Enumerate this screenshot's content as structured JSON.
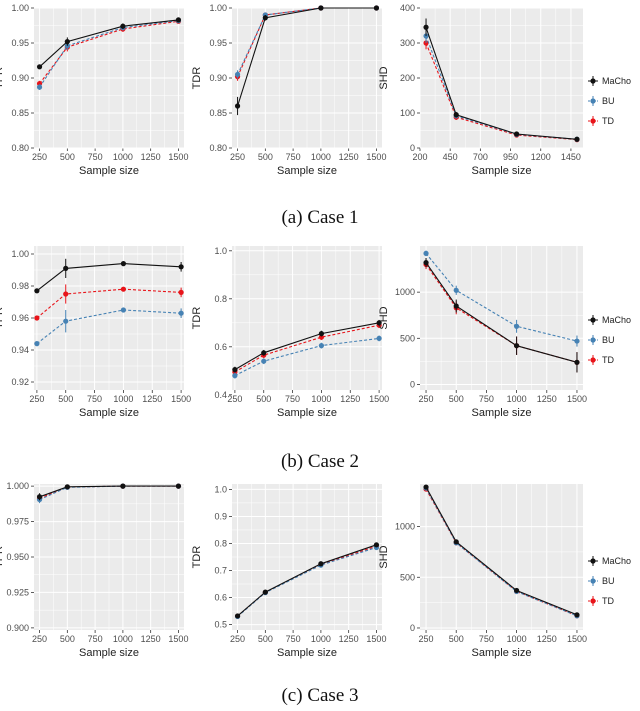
{
  "colors": {
    "MaCho": "#111111",
    "BU": "#4682b4",
    "TD": "#e8141a",
    "panel": "#ebebeb",
    "grid": "#ffffff"
  },
  "legend": [
    "MaCho",
    "BU",
    "TD"
  ],
  "captions": [
    "(a) Case 1",
    "(b) Case 2",
    "(c) Case 3"
  ],
  "chart_data": [
    {
      "type": "line",
      "case": "Case 1",
      "title": "",
      "xlabel": "Sample size",
      "ylabel": "TPR",
      "xlim": [
        200,
        1550
      ],
      "ylim": [
        0.8,
        1.0
      ],
      "xticks": [
        250,
        500,
        750,
        1000,
        1250,
        1500
      ],
      "yticks": [
        0.8,
        0.85,
        0.9,
        0.95,
        1.0
      ],
      "xtick_labels": [
        "250",
        "500",
        "750",
        "1000",
        "1250",
        "1500"
      ],
      "ytick_labels": [
        "0.80",
        "0.85",
        "0.90",
        "0.95",
        "1.00"
      ],
      "x": [
        250,
        500,
        1000,
        1500
      ],
      "series": [
        {
          "name": "MaCho",
          "values": [
            0.916,
            0.952,
            0.974,
            0.983
          ],
          "err": [
            0.003,
            0.006,
            0.004,
            0.003
          ]
        },
        {
          "name": "BU",
          "values": [
            0.887,
            0.946,
            0.972,
            0.982
          ],
          "err": [
            0.004,
            0.006,
            0.004,
            0.003
          ]
        },
        {
          "name": "TD",
          "values": [
            0.892,
            0.944,
            0.97,
            0.981
          ],
          "err": [
            0.004,
            0.006,
            0.004,
            0.003
          ]
        }
      ]
    },
    {
      "type": "line",
      "case": "Case 1",
      "title": "",
      "xlabel": "Sample size",
      "ylabel": "TDR",
      "xlim": [
        200,
        1550
      ],
      "ylim": [
        0.8,
        1.0
      ],
      "xticks": [
        250,
        500,
        750,
        1000,
        1250,
        1500
      ],
      "yticks": [
        0.8,
        0.85,
        0.9,
        0.95,
        1.0
      ],
      "xtick_labels": [
        "250",
        "500",
        "750",
        "1000",
        "1250",
        "1500"
      ],
      "ytick_labels": [
        "0.80",
        "0.85",
        "0.90",
        "0.95",
        "1.00"
      ],
      "x": [
        250,
        500,
        1000,
        1500
      ],
      "series": [
        {
          "name": "MaCho",
          "values": [
            0.86,
            0.986,
            1.0,
            1.0
          ],
          "err": [
            0.013,
            0.004,
            0.0,
            0.0
          ]
        },
        {
          "name": "BU",
          "values": [
            0.905,
            0.99,
            1.0,
            1.0
          ],
          "err": [
            0.006,
            0.003,
            0.0,
            0.0
          ]
        },
        {
          "name": "TD",
          "values": [
            0.902,
            0.99,
            1.0,
            1.0
          ],
          "err": [
            0.006,
            0.003,
            0.0,
            0.0
          ]
        }
      ]
    },
    {
      "type": "line",
      "case": "Case 1",
      "title": "",
      "xlabel": "Sample size",
      "ylabel": "SHD",
      "xlim": [
        200,
        1550
      ],
      "ylim": [
        0,
        400
      ],
      "xticks": [
        200,
        450,
        700,
        950,
        1200,
        1450
      ],
      "yticks": [
        0,
        100,
        200,
        300,
        400
      ],
      "xtick_labels": [
        "200",
        "450",
        "700",
        "950",
        "1200",
        "1450"
      ],
      "ytick_labels": [
        "0",
        "100",
        "200",
        "300",
        "400"
      ],
      "x": [
        250,
        500,
        1000,
        1500
      ],
      "series": [
        {
          "name": "MaCho",
          "values": [
            345,
            95,
            40,
            25
          ],
          "err": [
            25,
            8,
            4,
            3
          ]
        },
        {
          "name": "BU",
          "values": [
            320,
            92,
            39,
            25
          ],
          "err": [
            20,
            8,
            4,
            3
          ]
        },
        {
          "name": "TD",
          "values": [
            300,
            88,
            37,
            24
          ],
          "err": [
            18,
            8,
            4,
            3
          ]
        }
      ]
    },
    {
      "type": "line",
      "case": "Case 2",
      "title": "",
      "xlabel": "Sample size",
      "ylabel": "TPR",
      "xlim": [
        225,
        1525
      ],
      "ylim": [
        0.915,
        1.005
      ],
      "xticks": [
        250,
        500,
        750,
        1000,
        1250,
        1500
      ],
      "yticks": [
        0.92,
        0.94,
        0.96,
        0.98,
        1.0
      ],
      "xtick_labels": [
        "250",
        "500",
        "750",
        "1000",
        "1250",
        "1500"
      ],
      "ytick_labels": [
        "0.92",
        "0.94",
        "0.96",
        "0.98",
        "1.00"
      ],
      "x": [
        250,
        500,
        1000,
        1500
      ],
      "series": [
        {
          "name": "MaCho",
          "values": [
            0.977,
            0.991,
            0.994,
            0.992
          ],
          "err": [
            0.001,
            0.006,
            0.001,
            0.003
          ]
        },
        {
          "name": "BU",
          "values": [
            0.944,
            0.958,
            0.965,
            0.963
          ],
          "err": [
            0.001,
            0.007,
            0.001,
            0.003
          ]
        },
        {
          "name": "TD",
          "values": [
            0.96,
            0.975,
            0.978,
            0.976
          ],
          "err": [
            0.001,
            0.006,
            0.001,
            0.003
          ]
        }
      ]
    },
    {
      "type": "line",
      "case": "Case 2",
      "title": "",
      "xlabel": "Sample size",
      "ylabel": "TDR",
      "xlim": [
        225,
        1525
      ],
      "ylim": [
        0.42,
        1.02
      ],
      "xticks": [
        250,
        500,
        750,
        1000,
        1250,
        1500
      ],
      "yticks": [
        0.4,
        0.6,
        0.8,
        1.0
      ],
      "xtick_labels": [
        "250",
        "500",
        "750",
        "1000",
        "1250",
        "1500"
      ],
      "ytick_labels": [
        "0.4",
        "0.6",
        "0.8",
        "1.0"
      ],
      "x": [
        250,
        500,
        1000,
        1500
      ],
      "series": [
        {
          "name": "MaCho",
          "values": [
            0.505,
            0.575,
            0.655,
            0.7
          ],
          "err": [
            0.012,
            0.012,
            0.012,
            0.012
          ]
        },
        {
          "name": "BU",
          "values": [
            0.48,
            0.54,
            0.605,
            0.635
          ],
          "err": [
            0.012,
            0.012,
            0.012,
            0.012
          ]
        },
        {
          "name": "TD",
          "values": [
            0.495,
            0.565,
            0.64,
            0.69
          ],
          "err": [
            0.012,
            0.012,
            0.012,
            0.012
          ]
        }
      ]
    },
    {
      "type": "line",
      "case": "Case 2",
      "title": "",
      "xlabel": "Sample size",
      "ylabel": "SHD",
      "xlim": [
        200,
        1550
      ],
      "ylim": [
        -60,
        1500
      ],
      "xticks": [
        250,
        500,
        750,
        1000,
        1250,
        1500
      ],
      "yticks": [
        0,
        500,
        1000
      ],
      "xtick_labels": [
        "250",
        "500",
        "750",
        "1000",
        "1250",
        "1500"
      ],
      "ytick_labels": [
        "0",
        "500",
        "1000"
      ],
      "x": [
        250,
        500,
        1000,
        1500
      ],
      "series": [
        {
          "name": "MaCho",
          "values": [
            1320,
            850,
            420,
            240
          ],
          "err": [
            50,
            70,
            100,
            110
          ]
        },
        {
          "name": "BU",
          "values": [
            1420,
            1020,
            630,
            470
          ],
          "err": [
            30,
            50,
            70,
            60
          ]
        },
        {
          "name": "TD",
          "values": [
            1300,
            830,
            420,
            240
          ],
          "err": [
            50,
            70,
            100,
            110
          ]
        }
      ]
    },
    {
      "type": "line",
      "case": "Case 3",
      "title": "",
      "xlabel": "Sample size",
      "ylabel": "TPR",
      "xlim": [
        200,
        1550
      ],
      "ylim": [
        0.8985,
        1.0015
      ],
      "xticks": [
        250,
        500,
        750,
        1000,
        1250,
        1500
      ],
      "yticks": [
        0.9,
        0.925,
        0.95,
        0.975,
        1.0
      ],
      "xtick_labels": [
        "250",
        "500",
        "750",
        "1000",
        "1250",
        "1500"
      ],
      "ytick_labels": [
        "0.900",
        "0.925",
        "0.950",
        "0.975",
        "1.000"
      ],
      "x": [
        250,
        500,
        1000,
        1500
      ],
      "series": [
        {
          "name": "MaCho",
          "values": [
            0.9925,
            0.9995,
            1.0,
            1.0
          ],
          "err": [
            0.0025,
            0.0006,
            0.0,
            0.0
          ]
        },
        {
          "name": "BU",
          "values": [
            0.9905,
            0.9992,
            1.0,
            1.0
          ],
          "err": [
            0.0025,
            0.0006,
            0.0,
            0.0
          ]
        },
        {
          "name": "TD",
          "values": [
            0.9915,
            0.9993,
            1.0,
            1.0
          ],
          "err": [
            0.0025,
            0.0006,
            0.0,
            0.0
          ]
        }
      ]
    },
    {
      "type": "line",
      "case": "Case 3",
      "title": "",
      "xlabel": "Sample size",
      "ylabel": "TDR",
      "xlim": [
        200,
        1550
      ],
      "ylim": [
        0.48,
        1.02
      ],
      "xticks": [
        250,
        500,
        750,
        1000,
        1250,
        1500
      ],
      "yticks": [
        0.5,
        0.6,
        0.7,
        0.8,
        0.9,
        1.0
      ],
      "xtick_labels": [
        "250",
        "500",
        "750",
        "1000",
        "1250",
        "1500"
      ],
      "ytick_labels": [
        "0.5",
        "0.6",
        "0.7",
        "0.8",
        "0.9",
        "1.0"
      ],
      "x": [
        250,
        500,
        1000,
        1500
      ],
      "series": [
        {
          "name": "MaCho",
          "values": [
            0.532,
            0.62,
            0.725,
            0.795
          ],
          "err": [
            0.004,
            0.004,
            0.005,
            0.005
          ]
        },
        {
          "name": "BU",
          "values": [
            0.53,
            0.618,
            0.72,
            0.785
          ],
          "err": [
            0.004,
            0.004,
            0.005,
            0.005
          ]
        },
        {
          "name": "TD",
          "values": [
            0.531,
            0.619,
            0.722,
            0.79
          ],
          "err": [
            0.004,
            0.004,
            0.005,
            0.005
          ]
        }
      ]
    },
    {
      "type": "line",
      "case": "Case 3",
      "title": "",
      "xlabel": "Sample size",
      "ylabel": "SHD",
      "xlim": [
        200,
        1550
      ],
      "ylim": [
        -20,
        1420
      ],
      "xticks": [
        250,
        500,
        750,
        1000,
        1250,
        1500
      ],
      "yticks": [
        0,
        500,
        1000
      ],
      "xtick_labels": [
        "250",
        "500",
        "750",
        "1000",
        "1250",
        "1500"
      ],
      "ytick_labels": [
        "0",
        "500",
        "1000"
      ],
      "x": [
        250,
        500,
        1000,
        1500
      ],
      "series": [
        {
          "name": "MaCho",
          "values": [
            1390,
            850,
            370,
            130
          ],
          "err": [
            15,
            15,
            15,
            15
          ]
        },
        {
          "name": "BU",
          "values": [
            1380,
            840,
            360,
            120
          ],
          "err": [
            15,
            15,
            15,
            15
          ]
        },
        {
          "name": "TD",
          "values": [
            1370,
            840,
            360,
            120
          ],
          "err": [
            15,
            15,
            15,
            15
          ]
        }
      ]
    }
  ]
}
